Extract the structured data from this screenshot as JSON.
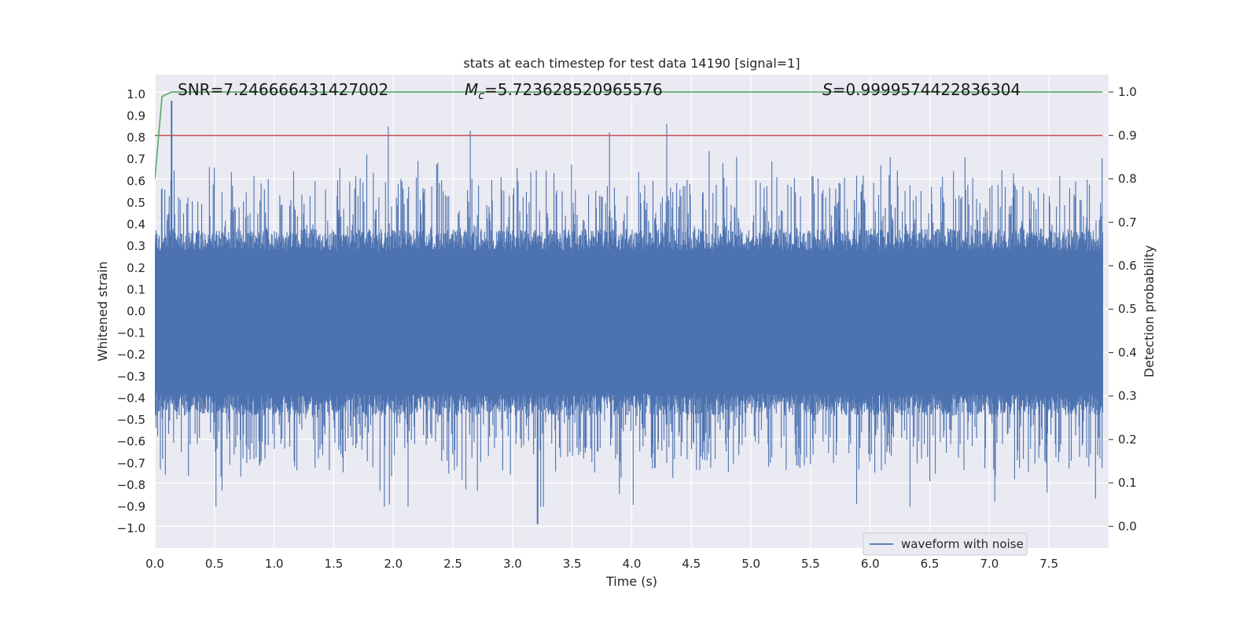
{
  "chart_data": {
    "type": "line",
    "title": "stats at each timestep for test data 14190 [signal=1]",
    "xlabel": "Time (s)",
    "ylabel": "Whitened strain",
    "y2label": "Detection probability",
    "xlim": [
      0.0,
      8.0
    ],
    "ylim": [
      -1.09,
      1.09
    ],
    "y2lim": [
      -0.05,
      1.04
    ],
    "xticks": [
      "0.0",
      "0.5",
      "1.0",
      "1.5",
      "2.0",
      "2.5",
      "3.0",
      "3.5",
      "4.0",
      "4.5",
      "5.0",
      "5.5",
      "6.0",
      "6.5",
      "7.0",
      "7.5"
    ],
    "yticks": [
      "1.0",
      "0.9",
      "0.8",
      "0.7",
      "0.6",
      "0.5",
      "0.4",
      "0.3",
      "0.2",
      "0.1",
      "0.0",
      "−0.1",
      "−0.2",
      "−0.3",
      "−0.4",
      "−0.5",
      "−0.6",
      "−0.7",
      "−0.8",
      "−0.9",
      "−1.0"
    ],
    "y2ticks": [
      "1.0",
      "0.9",
      "0.8",
      "0.7",
      "0.6",
      "0.5",
      "0.4",
      "0.3",
      "0.2",
      "0.1",
      "0.0"
    ],
    "grid": true,
    "legend_position": "bottom-right",
    "annotations": {
      "snr": "SNR=7.246666431427002",
      "mc_symbol": "M",
      "mc_sub": "c",
      "mc_value": "=5.723628520965576",
      "s_symbol": "S",
      "s_value": "=0.9999574422836304"
    },
    "series": [
      {
        "name": "waveform with noise",
        "axis": "left",
        "color": "#4c72b0",
        "style": "dense-noise",
        "approx_positive_envelope": 0.6,
        "approx_negative_envelope": -0.85,
        "peak_max": {
          "x": 0.14,
          "y": 0.97
        },
        "peak_min": {
          "x": 3.21,
          "y": -0.98
        }
      },
      {
        "axis": "right",
        "color": "#55a868",
        "x": [
          0.0,
          0.06,
          0.14,
          0.5,
          7.95
        ],
        "values": [
          0.8,
          0.99,
          1.0,
          1.0,
          1.0
        ]
      },
      {
        "axis": "right",
        "color": "#c44e52",
        "x": [
          0.0,
          7.95
        ],
        "values": [
          0.9,
          0.9
        ]
      }
    ],
    "colors": {
      "plot_bg": "#eaeaf2",
      "grid": "#ffffff",
      "waveform": "#4c72b0",
      "probability": "#55a868",
      "threshold": "#c44e52"
    }
  }
}
